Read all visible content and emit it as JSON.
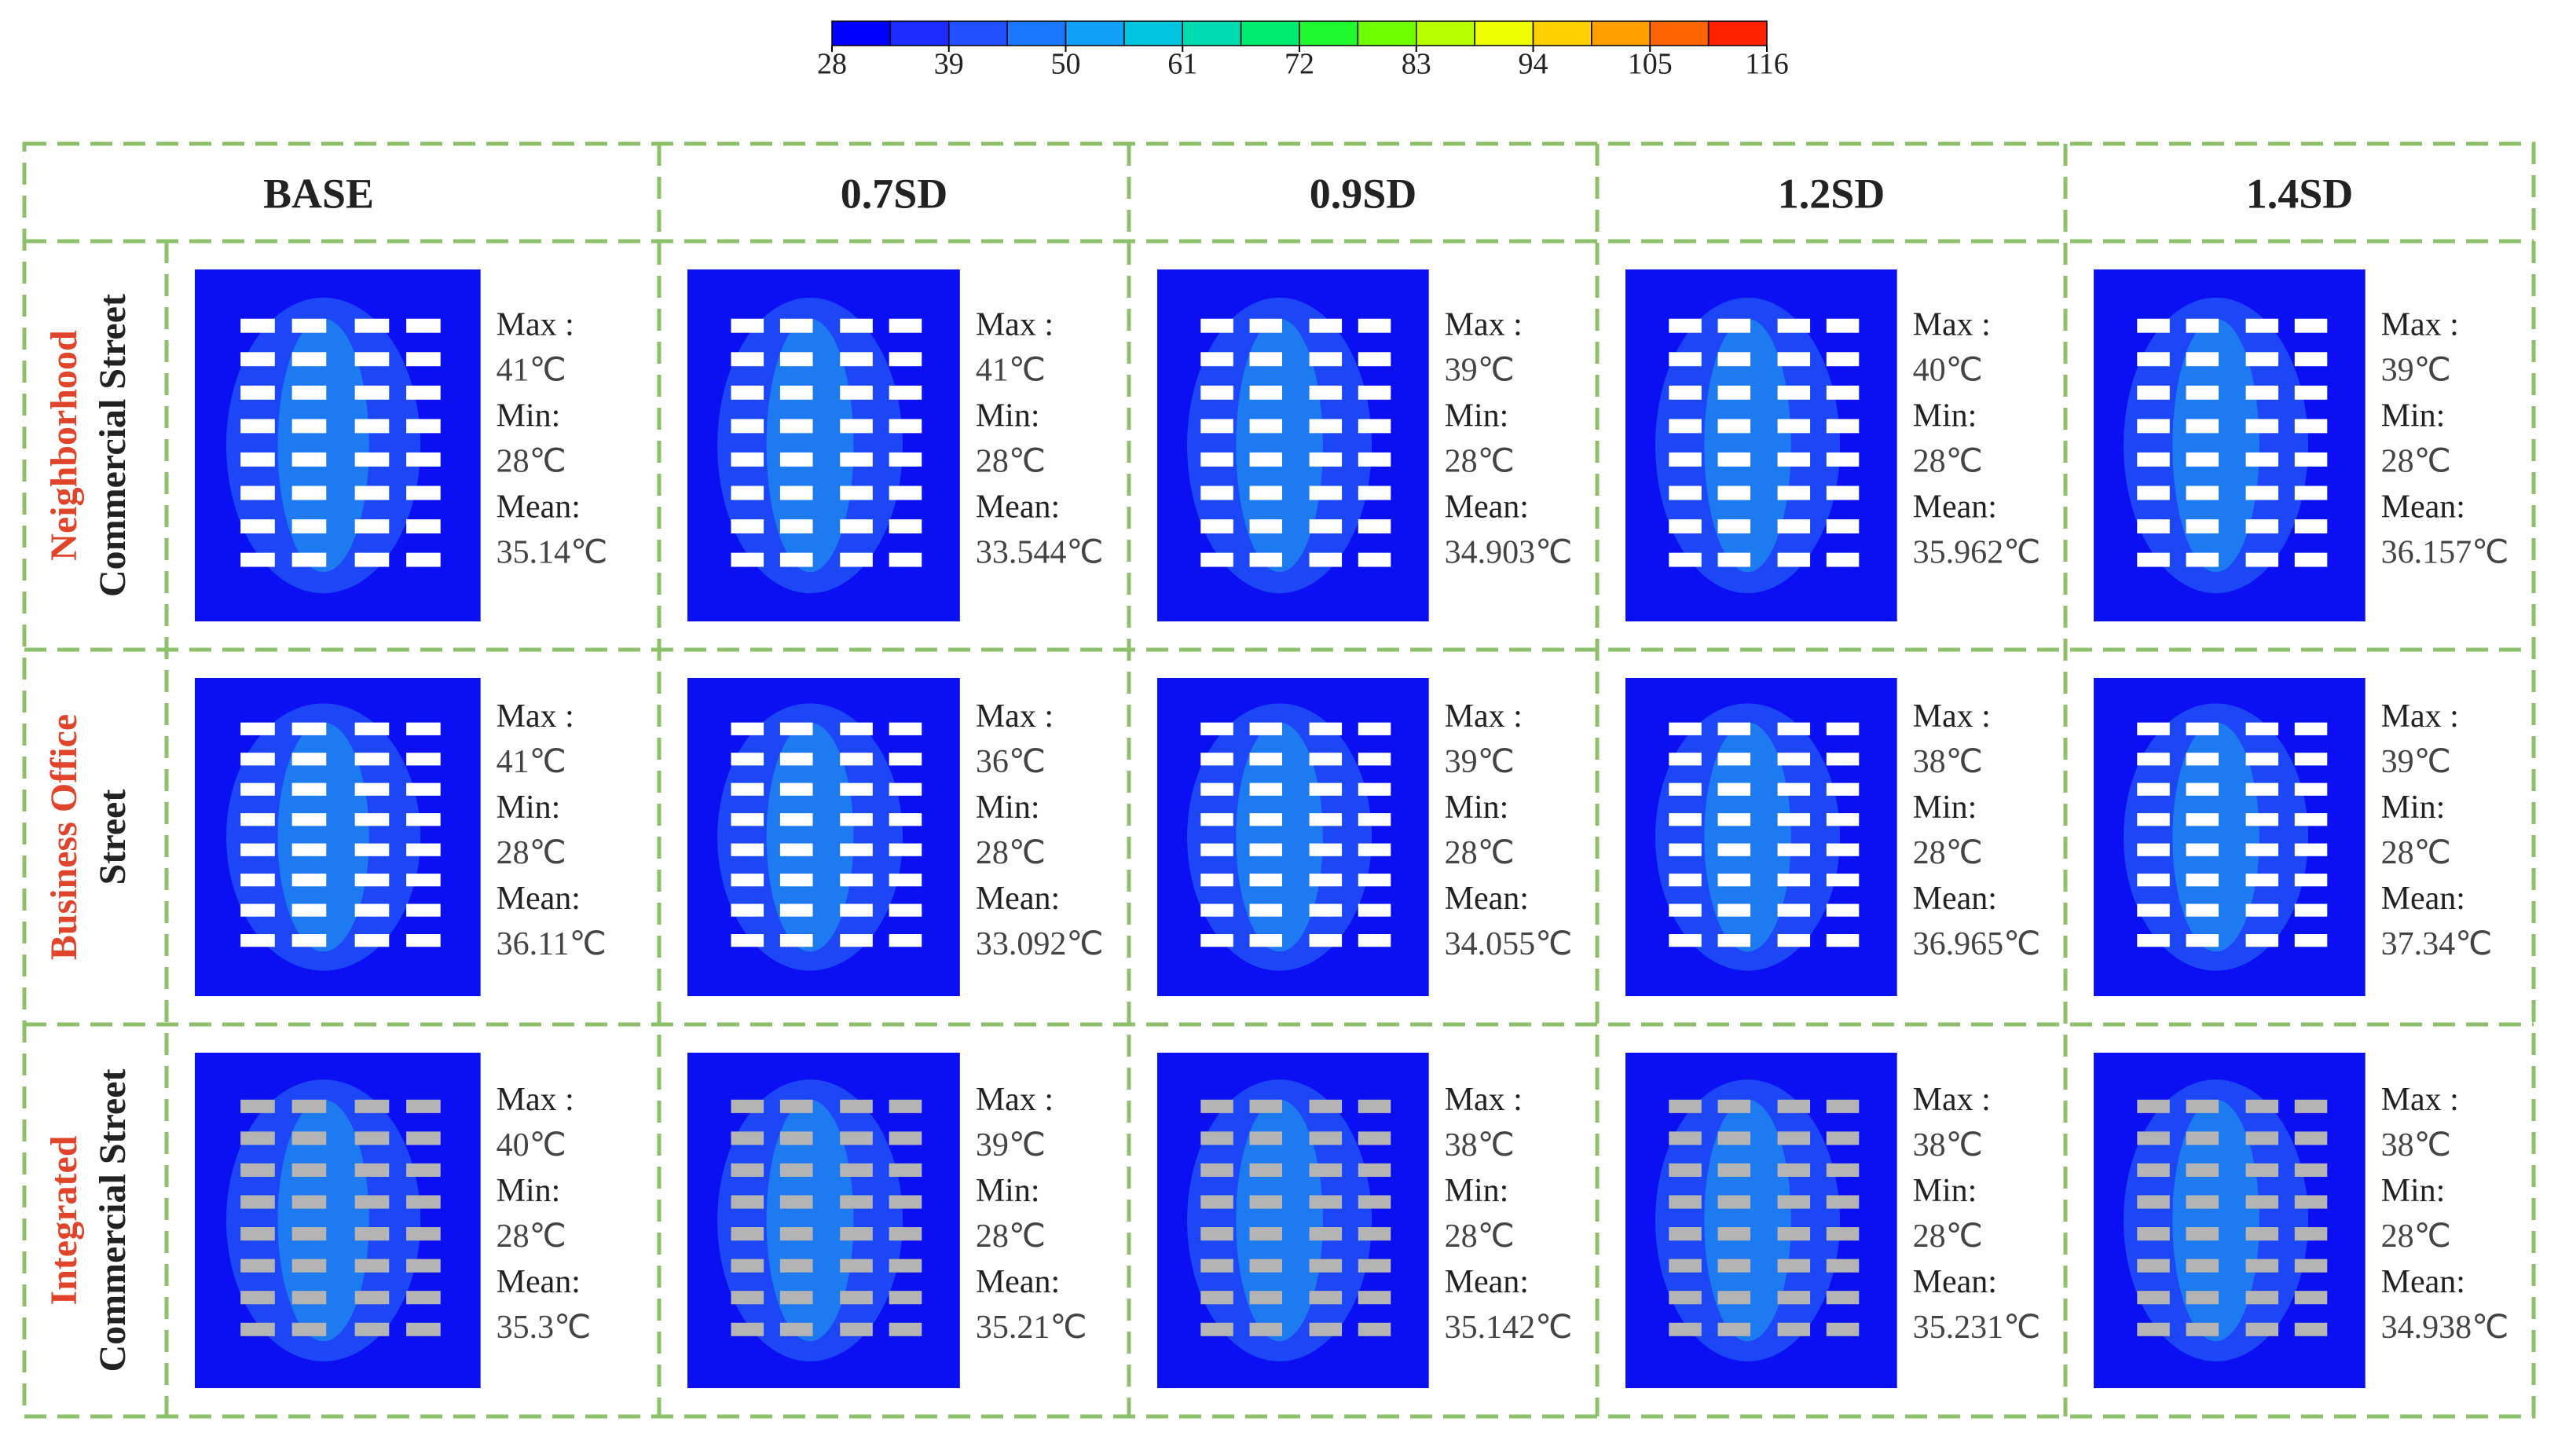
{
  "colorbar": {
    "ticks": [
      28,
      39,
      50,
      61,
      72,
      83,
      94,
      105,
      116
    ],
    "colors": [
      "#0000ff",
      "#1c2cff",
      "#2050ff",
      "#1a78ff",
      "#10a0f8",
      "#00c4e0",
      "#00dcb0",
      "#00ec70",
      "#20f830",
      "#70ff00",
      "#b8ff00",
      "#f0ff00",
      "#ffd000",
      "#ffa000",
      "#ff6400",
      "#ff2000"
    ]
  },
  "columns": [
    "BASE",
    "0.7SD",
    "0.9SD",
    "1.2SD",
    "1.4SD"
  ],
  "labels": {
    "max": "Max :",
    "min": "Min:",
    "mean": "Mean:"
  },
  "rows": [
    {
      "title": "Neighborhood",
      "subtitle": "Commercial Street",
      "cells": [
        {
          "max": "41℃",
          "min": "28℃",
          "mean": "35.14℃"
        },
        {
          "max": "41℃",
          "min": "28℃",
          "mean": "33.544℃"
        },
        {
          "max": "39℃",
          "min": "28℃",
          "mean": "34.903℃"
        },
        {
          "max": "40℃",
          "min": "28℃",
          "mean": "35.962℃"
        },
        {
          "max": "39℃",
          "min": "28℃",
          "mean": "36.157℃"
        }
      ]
    },
    {
      "title": "Business Office",
      "subtitle": "Street",
      "cells": [
        {
          "max": "41℃",
          "min": "28℃",
          "mean": "36.11℃"
        },
        {
          "max": "36℃",
          "min": "28℃",
          "mean": "33.092℃"
        },
        {
          "max": "39℃",
          "min": "28℃",
          "mean": "34.055℃"
        },
        {
          "max": "38℃",
          "min": "28℃",
          "mean": "36.965℃"
        },
        {
          "max": "39℃",
          "min": "28℃",
          "mean": "37.34℃"
        }
      ]
    },
    {
      "title": "Integrated",
      "subtitle": "Commercial Street",
      "cells": [
        {
          "max": "40℃",
          "min": "28℃",
          "mean": "35.3℃"
        },
        {
          "max": "39℃",
          "min": "28℃",
          "mean": "35.21℃"
        },
        {
          "max": "38℃",
          "min": "28℃",
          "mean": "35.142℃"
        },
        {
          "max": "38℃",
          "min": "28℃",
          "mean": "35.231℃"
        },
        {
          "max": "38℃",
          "min": "28℃",
          "mean": "34.938℃"
        }
      ]
    }
  ]
}
